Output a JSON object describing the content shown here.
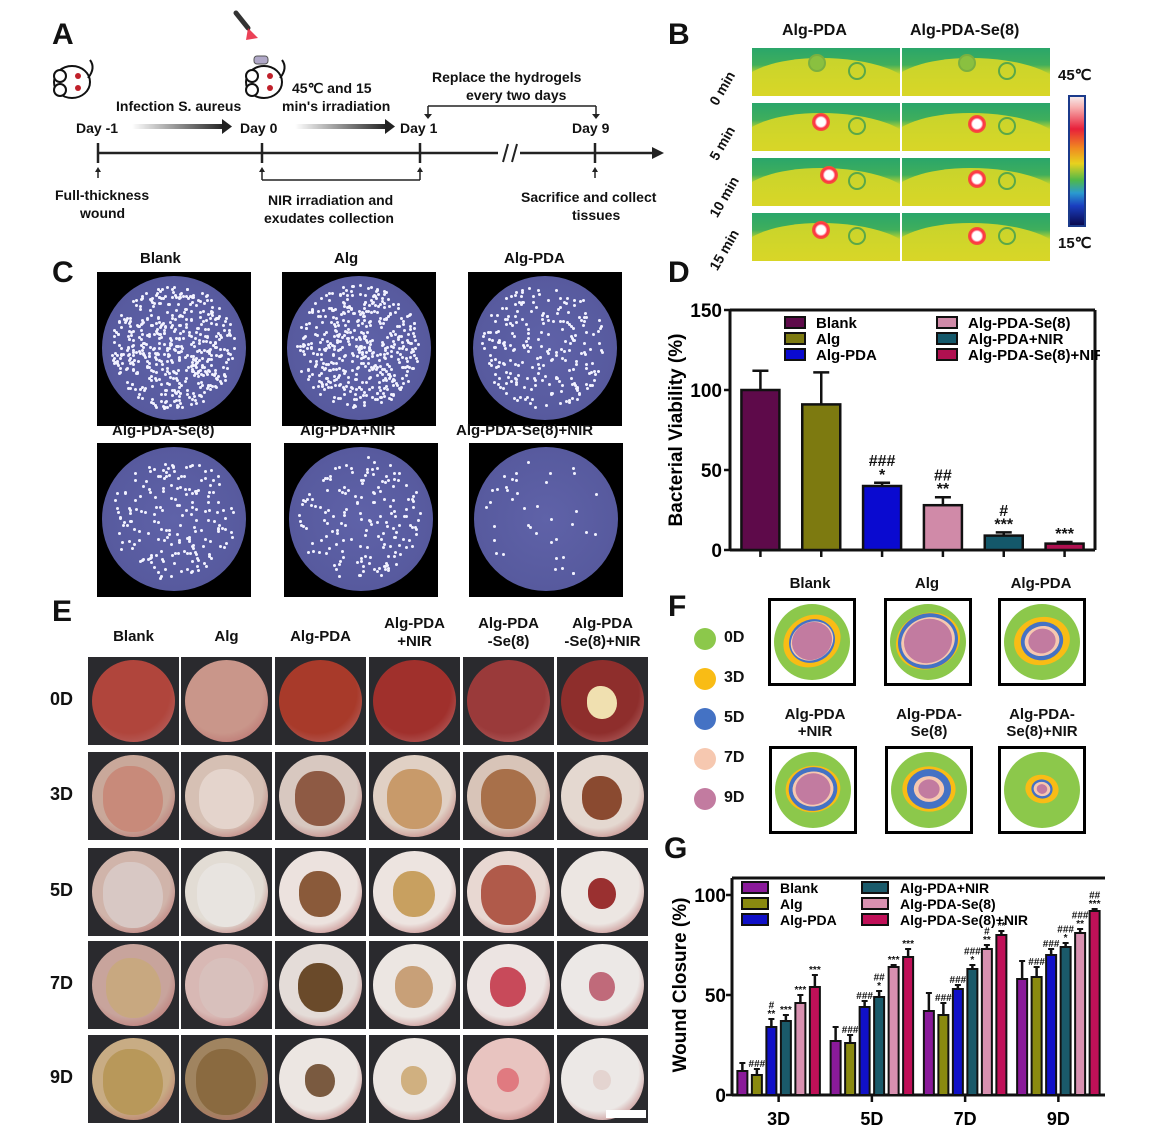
{
  "panels": {
    "A": {
      "letter": "A",
      "timeline": {
        "days": [
          "Day -1",
          "Day 0",
          "Day 1",
          "Day 9"
        ],
        "step1": "Infection S. aureus",
        "step2_line1": "45℃ and 15",
        "step2_line2": "min's irradiation",
        "replace_line1": "Replace the hydrogels",
        "replace_line2": "every two days",
        "below1_line1": "Full-thickness",
        "below1_line2": "wound",
        "below2_line1": "NIR irradiation and",
        "below2_line2": "exudates collection",
        "below3_line1": "Sacrifice and collect",
        "below3_line2": "tissues"
      }
    },
    "B": {
      "letter": "B",
      "columns": [
        "Alg-PDA",
        "Alg-PDA-Se(8)"
      ],
      "rows": [
        "0 min",
        "5 min",
        "10 min",
        "15 min"
      ],
      "scale_max": "45℃",
      "scale_min": "15℃"
    },
    "C": {
      "letter": "C",
      "plates": [
        "Blank",
        "Alg",
        "Alg-PDA",
        "Alg-PDA-Se(8)",
        "Alg-PDA+NIR",
        "Alg-PDA-Se(8)+NIR"
      ]
    },
    "E": {
      "letter": "E",
      "columns": [
        {
          "line1": "Blank",
          "line2": ""
        },
        {
          "line1": "Alg",
          "line2": ""
        },
        {
          "line1": "Alg-PDA",
          "line2": ""
        },
        {
          "line1": "Alg-PDA",
          "line2": "+NIR"
        },
        {
          "line1": "Alg-PDA",
          "line2": "-Se(8)"
        },
        {
          "line1": "Alg-PDA",
          "line2": "-Se(8)+NIR"
        }
      ],
      "rows": [
        "0D",
        "3D",
        "5D",
        "7D",
        "9D"
      ]
    },
    "F": {
      "letter": "F",
      "legend": [
        {
          "label": "0D",
          "color": "#8cc84b"
        },
        {
          "label": "3D",
          "color": "#f9bc15"
        },
        {
          "label": "5D",
          "color": "#4472c4"
        },
        {
          "label": "7D",
          "color": "#f6c8b0"
        },
        {
          "label": "9D",
          "color": "#c27ba0"
        }
      ],
      "traces": [
        {
          "line1": "Blank",
          "line2": ""
        },
        {
          "line1": "Alg",
          "line2": ""
        },
        {
          "line1": "Alg-PDA",
          "line2": ""
        },
        {
          "line1": "Alg-PDA",
          "line2": "+NIR"
        },
        {
          "line1": "Alg-PDA-",
          "line2": "Se(8)"
        },
        {
          "line1": "Alg-PDA-",
          "line2": "Se(8)+NIR"
        }
      ]
    },
    "D_letter": "D",
    "G_letter": "G"
  },
  "chart_data": [
    {
      "id": "D",
      "type": "bar",
      "title": "",
      "xlabel": "",
      "ylabel": "Bacterial Viability (%)",
      "ylim": [
        0,
        150
      ],
      "yticks": [
        0,
        50,
        100,
        150
      ],
      "legend_position": "top-right",
      "categories": [
        "Blank",
        "Alg",
        "Alg-PDA",
        "Alg-PDA-Se(8)",
        "Alg-PDA+NIR",
        "Alg-PDA-Se(8)+NIR"
      ],
      "colors": [
        "#5e0a4a",
        "#7d7a10",
        "#0a0ad0",
        "#d08aa8",
        "#14586a",
        "#b01050"
      ],
      "values": [
        100,
        91,
        40,
        28,
        9,
        4
      ],
      "errors": [
        12,
        20,
        2,
        5,
        2,
        1
      ],
      "annotations": [
        "",
        "",
        "###\n*",
        "##\n**",
        "#\n***",
        "***"
      ]
    },
    {
      "id": "G",
      "type": "bar",
      "title": "",
      "xlabel": "",
      "ylabel": "Wound Closure (%)",
      "ylim": [
        0,
        120
      ],
      "yticks": [
        0,
        50,
        100
      ],
      "legend_position": "top-left",
      "categories": [
        "3D",
        "5D",
        "7D",
        "9D"
      ],
      "series": [
        {
          "name": "Blank",
          "color": "#8a1a9a",
          "values": [
            12,
            27,
            42,
            58
          ],
          "errors": [
            4,
            7,
            9,
            9
          ],
          "annotations": [
            "",
            "",
            "",
            ""
          ]
        },
        {
          "name": "Alg",
          "color": "#8a8a10",
          "values": [
            10,
            26,
            40,
            59
          ],
          "errors": [
            3,
            4,
            6,
            5
          ],
          "annotations": [
            "###",
            "###",
            "###",
            "###"
          ]
        },
        {
          "name": "Alg-PDA",
          "color": "#1010c8",
          "values": [
            34,
            44,
            53,
            70
          ],
          "errors": [
            4,
            3,
            2,
            3
          ],
          "annotations": [
            "#\n**",
            "###",
            "###",
            "###"
          ]
        },
        {
          "name": "Alg-PDA+NIR",
          "color": "#1a5a6a",
          "values": [
            37,
            49,
            63,
            74
          ],
          "errors": [
            3,
            3,
            2,
            2
          ],
          "annotations": [
            "***",
            "##\n*",
            "###\n*",
            "###\n*"
          ]
        },
        {
          "name": "Alg-PDA-Se(8)",
          "color": "#d890b0",
          "values": [
            46,
            64,
            73,
            81
          ],
          "errors": [
            4,
            1,
            2,
            2
          ],
          "annotations": [
            "***",
            "***",
            "#\n**",
            "###\n**"
          ]
        },
        {
          "name": "Alg-PDA-Se(8)+NIR",
          "color": "#c01058",
          "values": [
            54,
            69,
            80,
            92
          ],
          "errors": [
            6,
            4,
            2,
            1
          ],
          "annotations": [
            "***",
            "***",
            "**",
            "##\n***"
          ]
        }
      ]
    }
  ]
}
